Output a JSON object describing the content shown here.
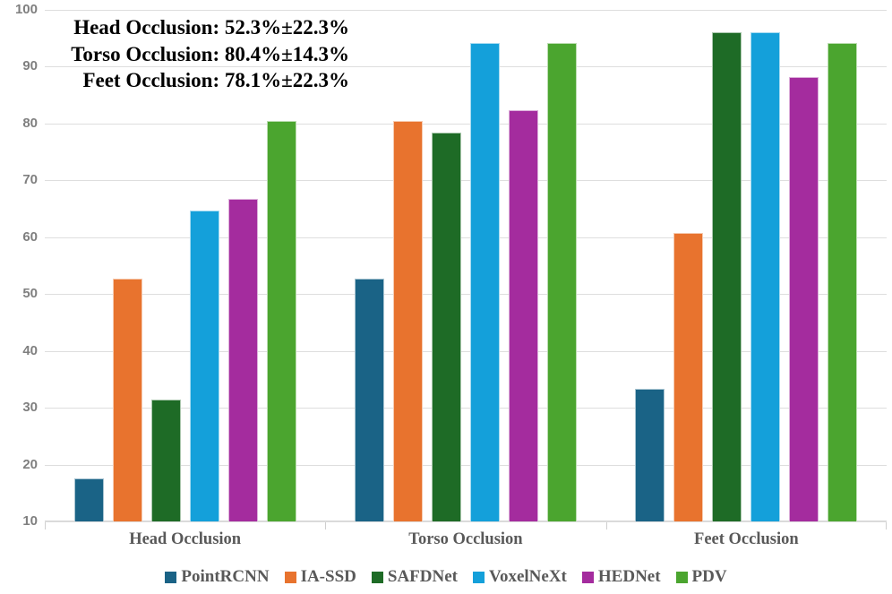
{
  "chart_data": {
    "type": "bar",
    "categories": [
      "Head Occlusion",
      "Torso Occlusion",
      "Feet Occlusion"
    ],
    "series": [
      {
        "name": "PointRCNN",
        "color": "#1a6386",
        "values": [
          17.5,
          52.8,
          33.3
        ]
      },
      {
        "name": "IA-SSD",
        "color": "#e8732e",
        "values": [
          52.8,
          80.4,
          60.8
        ]
      },
      {
        "name": "SAFDNet",
        "color": "#1e6b26",
        "values": [
          31.4,
          78.4,
          96.1
        ]
      },
      {
        "name": "VoxelNeXt",
        "color": "#14a0da",
        "values": [
          64.7,
          94.1,
          96.1
        ]
      },
      {
        "name": "HEDNet",
        "color": "#a42c9e",
        "values": [
          66.7,
          82.4,
          88.2
        ]
      },
      {
        "name": "PDV",
        "color": "#4ba52f",
        "values": [
          80.4,
          94.1,
          94.1
        ]
      }
    ],
    "annotations": [
      "Head Occlusion: 52.3%±22.3%",
      "Torso Occlusion: 80.4%±14.3%",
      "Feet Occlusion: 78.1%±22.3%"
    ],
    "y_axis": {
      "min": 10,
      "max": 100,
      "step": 10,
      "ticks": [
        "100",
        "90",
        "80",
        "70",
        "60",
        "50",
        "40",
        "30",
        "20",
        "10"
      ]
    },
    "xlabel": "",
    "ylabel": "",
    "title": "",
    "grid": true,
    "legend_position": "bottom",
    "colors": {
      "gridline": "#dedede",
      "axis_text": "#7f7f7f",
      "category_text": "#595959",
      "annotation_text": "#000000"
    }
  }
}
